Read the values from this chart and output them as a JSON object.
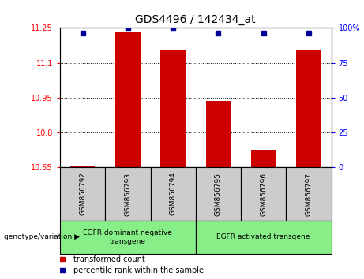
{
  "title": "GDS4496 / 142434_at",
  "samples": [
    "GSM856792",
    "GSM856793",
    "GSM856794",
    "GSM856795",
    "GSM856796",
    "GSM856797"
  ],
  "red_values": [
    10.657,
    11.235,
    11.155,
    10.935,
    10.725,
    11.155
  ],
  "blue_values": [
    96,
    100,
    100,
    96,
    96,
    96
  ],
  "ylim_left": [
    10.65,
    11.25
  ],
  "ylim_right": [
    0,
    100
  ],
  "yticks_left": [
    10.65,
    10.8,
    10.95,
    11.1,
    11.25
  ],
  "yticks_right": [
    0,
    25,
    50,
    75,
    100
  ],
  "ytick_labels_left": [
    "10.65",
    "10.8",
    "10.95",
    "11.1",
    "11.25"
  ],
  "ytick_labels_right": [
    "0",
    "25",
    "50",
    "75",
    "100%"
  ],
  "group1_label": "EGFR dominant negative\ntransgene",
  "group2_label": "EGFR activated transgene",
  "group_color": "#88EE88",
  "genotype_label": "genotype/variation ▶",
  "legend_red": "transformed count",
  "legend_blue": "percentile rank within the sample",
  "bar_color": "#CC0000",
  "dot_color": "#000099",
  "bar_bottom": 10.65,
  "bg_color": "#CCCCCC",
  "plot_bg": "#FFFFFF",
  "title_fontsize": 10,
  "axis_fontsize": 7,
  "label_fontsize": 7,
  "legend_fontsize": 7
}
